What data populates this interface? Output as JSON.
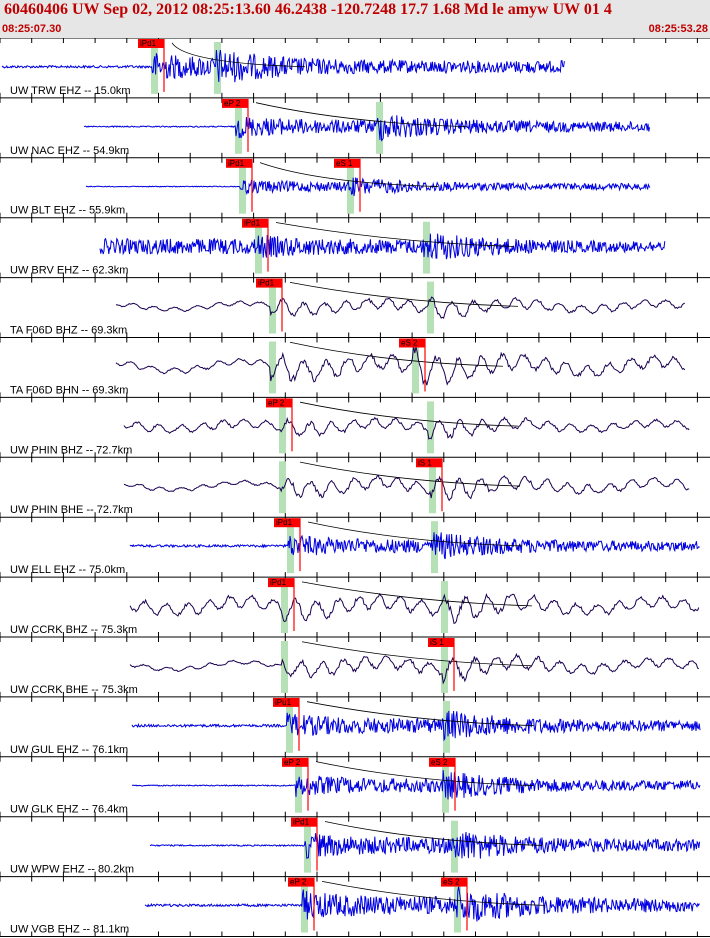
{
  "header": {
    "title": "60460406 UW Sep 02, 2012 08:25:13.60   46.2438 -120.7248 17.7 1.68 Md le amyw UW 01   4",
    "start_time": "08:25:07.30",
    "end_time": "08:25:53.28"
  },
  "colors": {
    "background": "#ffffff",
    "header_bg": "#e6e6e6",
    "header_text": "#c00000",
    "trace_ehz": "#0000e0",
    "trace_broadband": "#1a0050",
    "pick_flag": "#ff0000",
    "window_shade": "#b6e0b6",
    "moveout_curve": "#000000"
  },
  "chart_data": {
    "type": "line",
    "title": "",
    "xlim": [
      "08:25:07.30",
      "08:25:53.28"
    ],
    "channels": [
      {
        "label": "UW TRW EHZ -- 15.0km",
        "p_pick": "iPd1",
        "s_pick": ""
      },
      {
        "label": "UW NAC EHZ -- 54.9km",
        "p_pick": "eP 2",
        "s_pick": ""
      },
      {
        "label": "UW BLT EHZ -- 55.9km",
        "p_pick": "iPd1",
        "s_pick": "eS 1"
      },
      {
        "label": "UW BRV EHZ -- 62.3km",
        "p_pick": "iPd1",
        "s_pick": ""
      },
      {
        "label": "TA F06D BHZ -- 69.3km",
        "p_pick": "iPd1",
        "s_pick": ""
      },
      {
        "label": "TA F06D BHN -- 69.3km",
        "p_pick": "",
        "s_pick": "eS 2"
      },
      {
        "label": "UW PHIN BHZ -- 72.7km",
        "p_pick": "eP 2",
        "s_pick": ""
      },
      {
        "label": "UW PHIN BHE -- 72.7km",
        "p_pick": "",
        "s_pick": "iS 1"
      },
      {
        "label": "UW ELL EHZ -- 75.0km",
        "p_pick": "iPd1",
        "s_pick": ""
      },
      {
        "label": "UW CCRK BHZ -- 75.3km",
        "p_pick": "iPd1",
        "s_pick": ""
      },
      {
        "label": "UW CCRK BHE -- 75.3km",
        "p_pick": "",
        "s_pick": "iS 1"
      },
      {
        "label": "UW GUL EHZ -- 76.1km",
        "p_pick": "iPu1",
        "s_pick": ""
      },
      {
        "label": "UW GLK EHZ -- 76.4km",
        "p_pick": "eP 2",
        "s_pick": "eS 2"
      },
      {
        "label": "UW WPW EHZ -- 80.2km",
        "p_pick": "iPd1",
        "s_pick": ""
      },
      {
        "label": "UW VGB EHZ -- 81.1km",
        "p_pick": "eP 2",
        "s_pick": "eS 2"
      }
    ]
  }
}
